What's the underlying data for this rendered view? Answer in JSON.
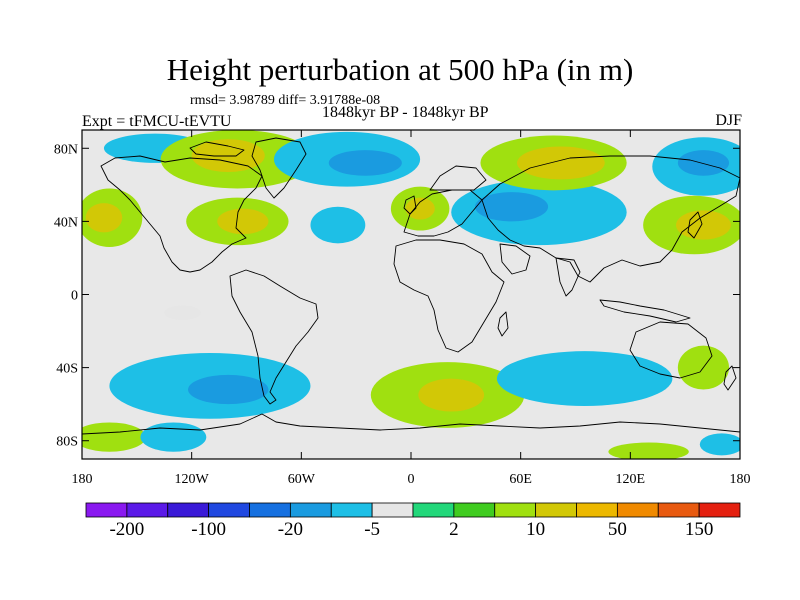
{
  "header": {
    "title": "Height perturbation at 500 hPa (in m)",
    "stats": "rmsd= 3.98789 diff= 3.91788e-08",
    "experiment": "Expt = tFMCU-tEVTU",
    "period": "1848kyr BP - 1848kyr BP",
    "season": "DJF"
  },
  "map": {
    "projection": "cylindrical-equidistant",
    "lon_range": [
      -180,
      180
    ],
    "lat_range": [
      -90,
      90
    ],
    "background": "#e8e8e8",
    "coastline_color": "#000000",
    "y_ticks": [
      {
        "lat": 80,
        "label": "80N"
      },
      {
        "lat": 40,
        "label": "40N"
      },
      {
        "lat": 0,
        "label": "0"
      },
      {
        "lat": -40,
        "label": "40S"
      },
      {
        "lat": -80,
        "label": "80S"
      }
    ],
    "x_ticks": [
      {
        "lon": -180,
        "label": "180"
      },
      {
        "lon": -120,
        "label": "120W"
      },
      {
        "lon": -60,
        "label": "60W"
      },
      {
        "lon": 0,
        "label": "0"
      },
      {
        "lon": 60,
        "label": "60E"
      },
      {
        "lon": 120,
        "label": "120E"
      },
      {
        "lon": 180,
        "label": "180"
      }
    ],
    "anomaly_features": [
      {
        "lon": -140,
        "lat": 80,
        "rlon": 28,
        "rlat": 8,
        "value": -8
      },
      {
        "lon": -95,
        "lat": 74,
        "rlon": 42,
        "rlat": 16,
        "value": 5
      },
      {
        "lon": -100,
        "lat": 76,
        "rlon": 20,
        "rlat": 9,
        "value": 10
      },
      {
        "lon": -35,
        "lat": 74,
        "rlon": 40,
        "rlat": 15,
        "value": -8
      },
      {
        "lon": -25,
        "lat": 72,
        "rlon": 20,
        "rlat": 7,
        "value": -20
      },
      {
        "lon": -95,
        "lat": 40,
        "rlon": 28,
        "rlat": 13,
        "value": 5
      },
      {
        "lon": -92,
        "lat": 40,
        "rlon": 14,
        "rlat": 7,
        "value": 10
      },
      {
        "lon": -165,
        "lat": 42,
        "rlon": 18,
        "rlat": 16,
        "value": 5
      },
      {
        "lon": -168,
        "lat": 42,
        "rlon": 10,
        "rlat": 8,
        "value": 10
      },
      {
        "lon": -40,
        "lat": 38,
        "rlon": 15,
        "rlat": 10,
        "value": -8
      },
      {
        "lon": 5,
        "lat": 47,
        "rlon": 16,
        "rlat": 12,
        "value": 5
      },
      {
        "lon": 5,
        "lat": 47,
        "rlon": 8,
        "rlat": 6,
        "value": 10
      },
      {
        "lon": 70,
        "lat": 45,
        "rlon": 48,
        "rlat": 18,
        "value": -8
      },
      {
        "lon": 55,
        "lat": 48,
        "rlon": 20,
        "rlat": 8,
        "value": -20
      },
      {
        "lon": 78,
        "lat": 72,
        "rlon": 40,
        "rlat": 15,
        "value": 5
      },
      {
        "lon": 82,
        "lat": 72,
        "rlon": 24,
        "rlat": 9,
        "value": 15
      },
      {
        "lon": 160,
        "lat": 70,
        "rlon": 28,
        "rlat": 16,
        "value": -8
      },
      {
        "lon": 160,
        "lat": 72,
        "rlon": 14,
        "rlat": 7,
        "value": -20
      },
      {
        "lon": 155,
        "lat": 38,
        "rlon": 28,
        "rlat": 16,
        "value": 5
      },
      {
        "lon": 160,
        "lat": 38,
        "rlon": 15,
        "rlat": 8,
        "value": 15
      },
      {
        "lon": -125,
        "lat": -10,
        "rlon": 10,
        "rlat": 4,
        "value": -5
      },
      {
        "lon": -110,
        "lat": -50,
        "rlon": 55,
        "rlat": 18,
        "value": -8
      },
      {
        "lon": -100,
        "lat": -52,
        "rlon": 22,
        "rlat": 8,
        "value": -20
      },
      {
        "lon": -165,
        "lat": -78,
        "rlon": 20,
        "rlat": 8,
        "value": 5
      },
      {
        "lon": -130,
        "lat": -78,
        "rlon": 18,
        "rlat": 8,
        "value": -8
      },
      {
        "lon": 20,
        "lat": -55,
        "rlon": 42,
        "rlat": 18,
        "value": 5
      },
      {
        "lon": 22,
        "lat": -55,
        "rlon": 18,
        "rlat": 9,
        "value": 10
      },
      {
        "lon": 95,
        "lat": -46,
        "rlon": 48,
        "rlat": 15,
        "value": -8
      },
      {
        "lon": 160,
        "lat": -40,
        "rlon": 14,
        "rlat": 12,
        "value": 5
      },
      {
        "lon": 170,
        "lat": -82,
        "rlon": 12,
        "rlat": 6,
        "value": -8
      },
      {
        "lon": 130,
        "lat": -86,
        "rlon": 22,
        "rlat": 5,
        "value": 5
      }
    ]
  },
  "colorbar": {
    "colors": [
      "#8a19f0",
      "#5b1ae8",
      "#3a1ad8",
      "#2048e0",
      "#1670e0",
      "#1a9be0",
      "#1ebfe6",
      "#e6e6e6",
      "#22d77a",
      "#40cc20",
      "#a0e010",
      "#d2c806",
      "#ecb800",
      "#f08a00",
      "#e85a10",
      "#e42010"
    ],
    "labels": [
      {
        "after_box": 1,
        "text": "-200"
      },
      {
        "after_box": 3,
        "text": "-100"
      },
      {
        "after_box": 5,
        "text": "-20"
      },
      {
        "after_box": 7,
        "text": "-5"
      },
      {
        "after_box": 9,
        "text": "2"
      },
      {
        "after_box": 11,
        "text": "10"
      },
      {
        "after_box": 13,
        "text": "50"
      },
      {
        "after_box": 15,
        "text": "150"
      }
    ]
  }
}
